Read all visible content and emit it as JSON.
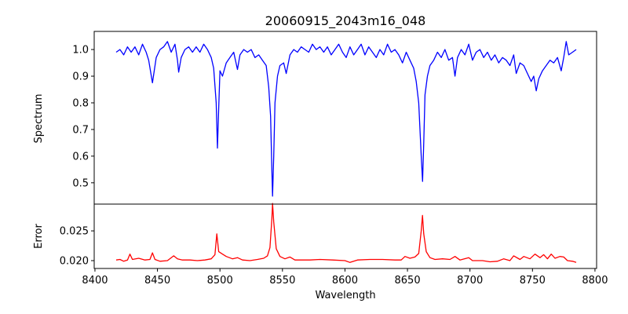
{
  "chart_data": [
    {
      "type": "line",
      "panel": "top",
      "title": "20060915_2043m16_048",
      "xlabel": "",
      "ylabel": "Spectrum",
      "xlim": [
        8399.4,
        8801.3
      ],
      "ylim": [
        0.42,
        1.068
      ],
      "yticks": [
        0.5,
        0.6,
        0.7,
        0.8,
        0.9,
        1.0
      ],
      "ytick_labels": [
        "0.5",
        "0.6",
        "0.7",
        "0.8",
        "0.9",
        "1.0"
      ],
      "grid": false,
      "color": "#0000ff",
      "series": [
        {
          "name": "Spectrum",
          "x": [
            8417,
            8420,
            8423,
            8426,
            8429,
            8432,
            8435,
            8438,
            8441,
            8443,
            8446,
            8449,
            8452,
            8455,
            8458,
            8461,
            8464,
            8466,
            8467,
            8469,
            8472,
            8475,
            8478,
            8481,
            8484,
            8487,
            8490,
            8493,
            8495,
            8497,
            8498,
            8499,
            8500,
            8502,
            8505,
            8508,
            8511,
            8514,
            8516,
            8519,
            8522,
            8525,
            8528,
            8531,
            8534,
            8537,
            8539,
            8540.5,
            8541.5,
            8542.1,
            8543,
            8544,
            8546,
            8548,
            8551,
            8553,
            8556,
            8559,
            8562,
            8565,
            8568,
            8571,
            8574,
            8577,
            8580,
            8583,
            8586,
            8589,
            8592,
            8595,
            8598,
            8601,
            8604,
            8607,
            8610,
            8613,
            8616,
            8619,
            8622,
            8625,
            8628,
            8631,
            8634,
            8637,
            8640,
            8643,
            8646,
            8649,
            8652,
            8655,
            8657,
            8659,
            8661,
            8662.1,
            8663,
            8664,
            8666,
            8668,
            8671,
            8674,
            8677,
            8680,
            8683,
            8686,
            8688,
            8690,
            8693,
            8696,
            8699,
            8702,
            8705,
            8708,
            8711,
            8714,
            8717,
            8720,
            8723,
            8726,
            8729,
            8732,
            8735,
            8737,
            8740,
            8743,
            8746,
            8749,
            8751,
            8753,
            8755,
            8758,
            8761,
            8764,
            8767,
            8770,
            8773,
            8775,
            8777,
            8779,
            8782,
            8785
          ],
          "y": [
            0.99,
            1.0,
            0.98,
            1.01,
            0.99,
            1.01,
            0.98,
            1.02,
            0.99,
            0.96,
            0.875,
            0.97,
            1.0,
            1.01,
            1.03,
            0.99,
            1.02,
            0.96,
            0.915,
            0.97,
            1.0,
            1.01,
            0.99,
            1.01,
            0.99,
            1.02,
            1.0,
            0.97,
            0.93,
            0.8,
            0.63,
            0.78,
            0.92,
            0.9,
            0.95,
            0.97,
            0.99,
            0.925,
            0.98,
            1.0,
            0.99,
            1.0,
            0.97,
            0.98,
            0.96,
            0.94,
            0.86,
            0.75,
            0.55,
            0.45,
            0.6,
            0.8,
            0.9,
            0.94,
            0.95,
            0.91,
            0.98,
            1.0,
            0.99,
            1.01,
            1.0,
            0.99,
            1.02,
            1.0,
            1.01,
            0.99,
            1.01,
            0.98,
            1.0,
            1.02,
            0.99,
            0.97,
            1.01,
            0.98,
            1.0,
            1.02,
            0.98,
            1.01,
            0.99,
            0.97,
            1.0,
            0.98,
            1.02,
            0.99,
            1.0,
            0.98,
            0.95,
            0.99,
            0.96,
            0.93,
            0.88,
            0.8,
            0.6,
            0.505,
            0.65,
            0.83,
            0.9,
            0.94,
            0.96,
            0.99,
            0.97,
            1.0,
            0.96,
            0.97,
            0.9,
            0.97,
            1.0,
            0.98,
            1.02,
            0.96,
            0.99,
            1.0,
            0.97,
            0.99,
            0.96,
            0.98,
            0.95,
            0.97,
            0.96,
            0.94,
            0.98,
            0.91,
            0.95,
            0.94,
            0.91,
            0.88,
            0.9,
            0.845,
            0.89,
            0.92,
            0.94,
            0.96,
            0.95,
            0.97,
            0.92,
            0.97,
            1.03,
            0.98,
            0.99,
            1.0
          ]
        }
      ]
    },
    {
      "type": "line",
      "panel": "bottom",
      "xlabel": "Wavelength",
      "ylabel": "Error",
      "xlim": [
        8399.4,
        8801.3
      ],
      "ylim": [
        0.01868,
        0.0295
      ],
      "xticks": [
        8400,
        8450,
        8500,
        8550,
        8600,
        8650,
        8700,
        8750,
        8800
      ],
      "xtick_labels": [
        "8400",
        "8450",
        "8500",
        "8550",
        "8600",
        "8650",
        "8700",
        "8750",
        "8800"
      ],
      "yticks": [
        0.02,
        0.025
      ],
      "ytick_labels": [
        "0.020",
        "0.025"
      ],
      "grid": false,
      "color": "#ff0000",
      "series": [
        {
          "name": "Error",
          "x": [
            8417,
            8420,
            8423,
            8426,
            8428,
            8430,
            8435,
            8440,
            8444,
            8446,
            8448,
            8452,
            8458,
            8463,
            8466,
            8470,
            8476,
            8482,
            8488,
            8493,
            8496,
            8497.5,
            8499,
            8502,
            8505,
            8510,
            8514,
            8518,
            8524,
            8530,
            8535,
            8538,
            8540,
            8541.5,
            8542.1,
            8543,
            8545,
            8548,
            8552,
            8556,
            8560,
            8566,
            8572,
            8580,
            8590,
            8600,
            8604,
            8610,
            8620,
            8630,
            8640,
            8645,
            8648,
            8652,
            8656,
            8659,
            8661,
            8662,
            8663,
            8665,
            8668,
            8672,
            8678,
            8684,
            8688,
            8692,
            8699,
            8702,
            8710,
            8716,
            8722,
            8727,
            8732,
            8735,
            8740,
            8743,
            8748,
            8752,
            8756,
            8759,
            8762,
            8765,
            8768,
            8772,
            8775,
            8778,
            8782,
            8785
          ],
          "y": [
            0.0201,
            0.0202,
            0.0199,
            0.0201,
            0.0211,
            0.0202,
            0.0204,
            0.0201,
            0.0202,
            0.0213,
            0.0202,
            0.0199,
            0.02,
            0.0208,
            0.0203,
            0.0201,
            0.0201,
            0.02,
            0.0201,
            0.0203,
            0.021,
            0.0245,
            0.0215,
            0.0211,
            0.0207,
            0.0203,
            0.0205,
            0.0201,
            0.02,
            0.0202,
            0.0204,
            0.0208,
            0.0222,
            0.027,
            0.0296,
            0.0265,
            0.022,
            0.0207,
            0.0203,
            0.0206,
            0.0201,
            0.0201,
            0.0201,
            0.0202,
            0.0201,
            0.02,
            0.0197,
            0.0201,
            0.0202,
            0.0202,
            0.0201,
            0.0201,
            0.0207,
            0.0204,
            0.0206,
            0.0212,
            0.025,
            0.0276,
            0.0245,
            0.0215,
            0.0205,
            0.0202,
            0.0203,
            0.0202,
            0.0207,
            0.0201,
            0.0205,
            0.02,
            0.02,
            0.0198,
            0.0199,
            0.0203,
            0.02,
            0.0208,
            0.0202,
            0.0207,
            0.0203,
            0.0211,
            0.0205,
            0.021,
            0.0203,
            0.0211,
            0.0204,
            0.0207,
            0.0206,
            0.02,
            0.0199,
            0.0197
          ]
        }
      ]
    }
  ]
}
